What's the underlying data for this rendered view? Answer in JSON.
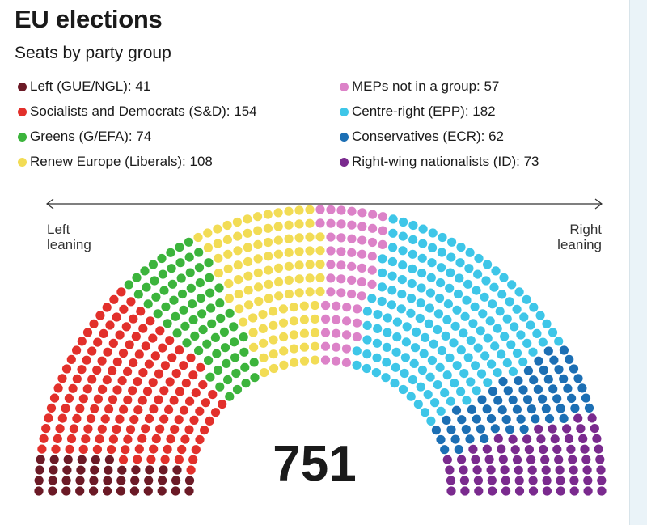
{
  "title": "EU elections",
  "subtitle": "Seats by party group",
  "total": "751",
  "axis": {
    "left_label": "Left\nleaning",
    "right_label": "Right\nleaning"
  },
  "legend": [
    {
      "label": "Left (GUE/NGL): 41",
      "color": "#6b1a26"
    },
    {
      "label": "Socialists and Democrats (S&D): 154",
      "color": "#e2302b"
    },
    {
      "label": "Greens (G/EFA): 74",
      "color": "#3cb43c"
    },
    {
      "label": "Renew Europe (Liberals): 108",
      "color": "#f2dc55"
    },
    {
      "label": "MEPs not in a group: 57",
      "color": "#dc82c8"
    },
    {
      "label": "Centre-right (EPP): 182",
      "color": "#3ec6e8"
    },
    {
      "label": "Conservatives (ECR): 62",
      "color": "#1c6fb4"
    },
    {
      "label": "Right-wing nationalists (ID): 73",
      "color": "#7a2a8e"
    }
  ],
  "chart_data": {
    "type": "parliament",
    "total": 751,
    "series": [
      {
        "name": "Left (GUE/NGL)",
        "value": 41,
        "color": "#6b1a26"
      },
      {
        "name": "Socialists and Democrats (S&D)",
        "value": 154,
        "color": "#e2302b"
      },
      {
        "name": "Greens (G/EFA)",
        "value": 74,
        "color": "#3cb43c"
      },
      {
        "name": "Renew Europe (Liberals)",
        "value": 108,
        "color": "#f2dc55"
      },
      {
        "name": "MEPs not in a group",
        "value": 57,
        "color": "#dc82c8"
      },
      {
        "name": "Centre-right (EPP)",
        "value": 182,
        "color": "#3ec6e8"
      },
      {
        "name": "Conservatives (ECR)",
        "value": 62,
        "color": "#1c6fb4"
      },
      {
        "name": "Right-wing nationalists (ID)",
        "value": 73,
        "color": "#7a2a8e"
      }
    ]
  }
}
